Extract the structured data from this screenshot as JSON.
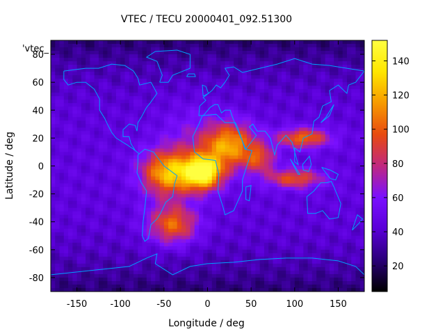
{
  "chart_data": {
    "type": "heatmap",
    "title": "VTEC / TECU 20000401_092.51300",
    "xlabel": "Longitude / deg",
    "ylabel": "Latitude / deg",
    "legend_key": "'vtec_",
    "xlim": [
      -180,
      180
    ],
    "ylim": [
      -90,
      90
    ],
    "x_ticks": [
      -150,
      -100,
      -50,
      0,
      50,
      100,
      150
    ],
    "y_ticks": [
      -80,
      -60,
      -40,
      -20,
      0,
      20,
      40,
      60,
      80
    ],
    "colorbar": {
      "min": 5,
      "max": 152,
      "ticks": [
        20,
        40,
        60,
        80,
        100,
        120,
        140
      ],
      "palette": [
        "#000000",
        "#2a0078",
        "#5a00d8",
        "#7a10ff",
        "#c02880",
        "#e84a10",
        "#f79a00",
        "#ffe600",
        "#ffff40"
      ]
    },
    "grid": false,
    "map_overlay": "coastlines",
    "coastline_color": "#00a0ff",
    "field": {
      "background_vtec": 45,
      "polar_vtec": 22,
      "features": [
        {
          "name": "south-atlantic-crest",
          "lon": -5,
          "lat": -5,
          "vtec": 150
        },
        {
          "name": "southern-anomaly",
          "lon": -40,
          "lat": -40,
          "vtec": 100
        },
        {
          "name": "northern-belt",
          "lon": 30,
          "lat": 20,
          "vtec": 110
        },
        {
          "name": "asia-extension-north",
          "lon": 110,
          "lat": 20,
          "vtec": 100
        },
        {
          "name": "asia-extension-south",
          "lon": 100,
          "lat": -10,
          "vtec": 95
        },
        {
          "name": "indian-ocean-tongue",
          "lon": 60,
          "lat": 5,
          "vtec": 90
        }
      ]
    }
  }
}
